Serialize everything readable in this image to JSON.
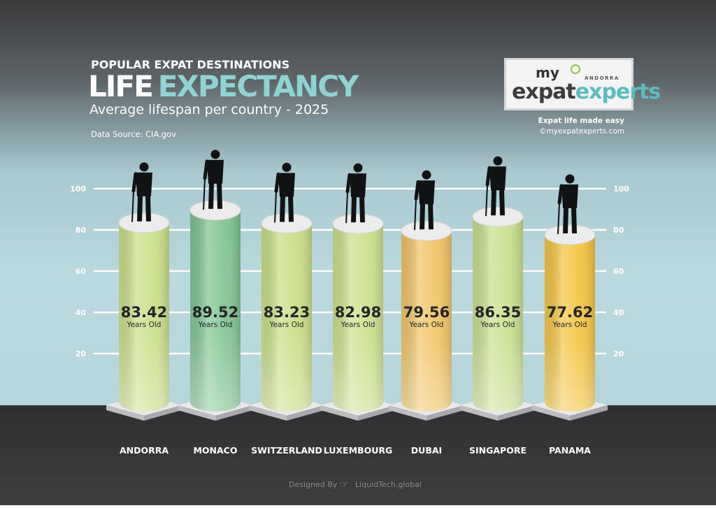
{
  "header": {
    "kicker": "POPULAR EXPAT DESTINATIONS",
    "title_part1": "LIFE",
    "title_part2": "EXPECTANCY",
    "subtitle": "Average lifespan per country - 2025",
    "source": "Data Source: CIA.gov"
  },
  "logo": {
    "my": "my",
    "andorra": "ANDORRA",
    "expat": "expat",
    "experts": "experts",
    "tagline": "Expat life made easy",
    "website": "©myexpatexperts.com"
  },
  "footer": {
    "designed_by": "Designed By",
    "designer": "LiquidTech.global"
  },
  "colors": {
    "background_dark": "#3a3a3c",
    "sky": "#b5d6dd",
    "axis_text": "#ffffff",
    "label_text": "#ffffff",
    "accent": "#8fd3d2"
  },
  "chart_data": {
    "type": "bar",
    "title": "LIFE EXPECTANCY",
    "subtitle": "Average lifespan per country - 2025",
    "ylim": [
      0,
      100
    ],
    "yticks": [
      20,
      40,
      60,
      80,
      100
    ],
    "grid": true,
    "unit_label": "Years Old",
    "categories": [
      "ANDORRA",
      "MONACO",
      "SWITZERLAND",
      "LUXEMBOURG",
      "DUBAI",
      "SINGAPORE",
      "PANAMA"
    ],
    "values": [
      83.42,
      89.52,
      83.23,
      82.98,
      79.56,
      86.35,
      77.62
    ],
    "value_labels": [
      "83.42",
      "89.52",
      "83.23",
      "82.98",
      "79.56",
      "86.35",
      "77.62"
    ],
    "colors": [
      "#c9df87",
      "#7fc391",
      "#c8de84",
      "#cbe08b",
      "#f0c465",
      "#c8df8d",
      "#f3c440"
    ]
  }
}
